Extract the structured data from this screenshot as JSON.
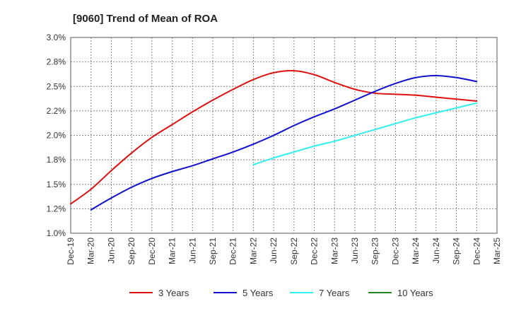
{
  "chart_data": {
    "type": "line",
    "title": "[9060]  Trend of Mean of ROA",
    "xlabel": "",
    "ylabel": "",
    "ylim": [
      1.0,
      3.0
    ],
    "y_ticks": [
      "1.0%",
      "1.2%",
      "1.5%",
      "1.8%",
      "2.0%",
      "2.2%",
      "2.5%",
      "2.8%",
      "3.0%"
    ],
    "y_tick_values": [
      1.0,
      1.25,
      1.5,
      1.75,
      2.0,
      2.25,
      2.5,
      2.75,
      3.0
    ],
    "x_ticks": [
      "Dec-19",
      "Mar-20",
      "Jun-20",
      "Sep-20",
      "Dec-20",
      "Mar-21",
      "Jun-21",
      "Sep-21",
      "Dec-21",
      "Mar-22",
      "Jun-22",
      "Sep-22",
      "Dec-22",
      "Mar-23",
      "Jun-23",
      "Sep-23",
      "Dec-23",
      "Mar-24",
      "Jun-24",
      "Sep-24",
      "Dec-24",
      "Mar-25"
    ],
    "grid": true,
    "legend_position": "bottom",
    "series": [
      {
        "name": "3 Years",
        "color": "#dd1111",
        "points": [
          [
            "Dec-19",
            1.3
          ],
          [
            "Mar-20",
            1.45
          ],
          [
            "Jun-20",
            1.64
          ],
          [
            "Sep-20",
            1.82
          ],
          [
            "Dec-20",
            1.98
          ],
          [
            "Mar-21",
            2.11
          ],
          [
            "Jun-21",
            2.24
          ],
          [
            "Sep-21",
            2.36
          ],
          [
            "Dec-21",
            2.47
          ],
          [
            "Mar-22",
            2.57
          ],
          [
            "Jun-22",
            2.64
          ],
          [
            "Sep-22",
            2.66
          ],
          [
            "Dec-22",
            2.62
          ],
          [
            "Mar-23",
            2.54
          ],
          [
            "Jun-23",
            2.47
          ],
          [
            "Sep-23",
            2.43
          ],
          [
            "Dec-23",
            2.42
          ],
          [
            "Mar-24",
            2.41
          ],
          [
            "Jun-24",
            2.39
          ],
          [
            "Sep-24",
            2.37
          ],
          [
            "Dec-24",
            2.35
          ]
        ]
      },
      {
        "name": "5 Years",
        "color": "#1111cc",
        "points": [
          [
            "Mar-20",
            1.24
          ],
          [
            "Jun-20",
            1.36
          ],
          [
            "Sep-20",
            1.47
          ],
          [
            "Dec-20",
            1.56
          ],
          [
            "Mar-21",
            1.63
          ],
          [
            "Jun-21",
            1.69
          ],
          [
            "Sep-21",
            1.76
          ],
          [
            "Dec-21",
            1.83
          ],
          [
            "Mar-22",
            1.91
          ],
          [
            "Jun-22",
            2.0
          ],
          [
            "Sep-22",
            2.1
          ],
          [
            "Dec-22",
            2.19
          ],
          [
            "Mar-23",
            2.27
          ],
          [
            "Jun-23",
            2.36
          ],
          [
            "Sep-23",
            2.45
          ],
          [
            "Dec-23",
            2.53
          ],
          [
            "Mar-24",
            2.59
          ],
          [
            "Jun-24",
            2.61
          ],
          [
            "Sep-24",
            2.59
          ],
          [
            "Dec-24",
            2.55
          ]
        ]
      },
      {
        "name": "7 Years",
        "color": "#33eeee",
        "points": [
          [
            "Mar-22",
            1.7
          ],
          [
            "Jun-22",
            1.77
          ],
          [
            "Sep-22",
            1.83
          ],
          [
            "Dec-22",
            1.89
          ],
          [
            "Mar-23",
            1.94
          ],
          [
            "Jun-23",
            2.0
          ],
          [
            "Sep-23",
            2.06
          ],
          [
            "Dec-23",
            2.12
          ],
          [
            "Mar-24",
            2.18
          ],
          [
            "Jun-24",
            2.23
          ],
          [
            "Sep-24",
            2.28
          ],
          [
            "Dec-24",
            2.33
          ]
        ]
      },
      {
        "name": "10 Years",
        "color": "#228822",
        "points": []
      }
    ]
  }
}
